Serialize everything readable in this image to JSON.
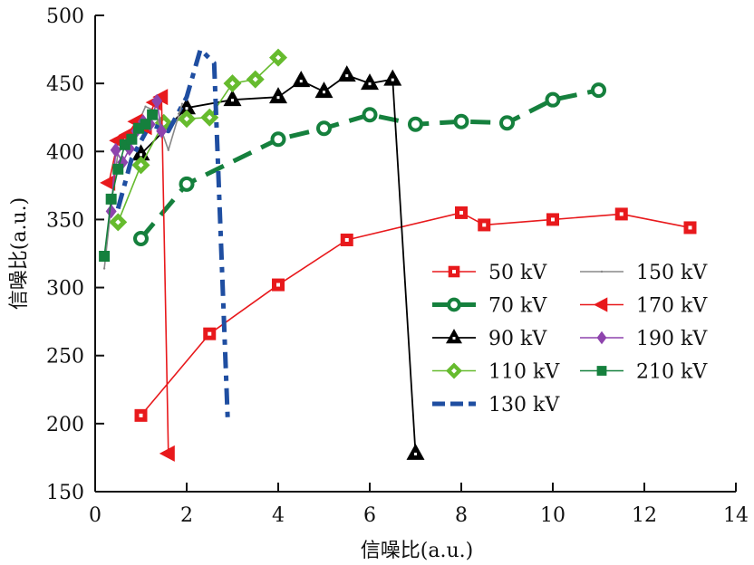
{
  "chart_data": {
    "type": "line",
    "title": "",
    "xlabel": "信噪比(a.u.)",
    "ylabel": "信噪比(a.u.)",
    "xlim": [
      0,
      14
    ],
    "ylim": [
      150,
      500
    ],
    "xticks": [
      0,
      2,
      4,
      6,
      8,
      10,
      12,
      14
    ],
    "yticks": [
      150,
      200,
      250,
      300,
      350,
      400,
      450,
      500
    ],
    "grid": false,
    "legend_position": "center-right",
    "series": [
      {
        "name": "50 kV",
        "color": "#e8191c",
        "marker": "square-open",
        "style": "solid",
        "x": [
          1,
          2.5,
          4,
          5.5,
          8,
          8.5,
          10,
          11.5,
          13
        ],
        "y": [
          206,
          266,
          302,
          335,
          355,
          346,
          350,
          354,
          344
        ]
      },
      {
        "name": "70 kV",
        "color": "#15803d",
        "marker": "circle-open",
        "style": "dashed",
        "x": [
          1,
          2,
          4,
          5,
          6,
          7,
          8,
          9,
          10,
          11
        ],
        "y": [
          336,
          376,
          409,
          417,
          427,
          420,
          422,
          421,
          438,
          445
        ]
      },
      {
        "name": "90 kV",
        "color": "#000000",
        "marker": "triangle-up",
        "style": "solid",
        "x": [
          1,
          2,
          3,
          4,
          4.5,
          5,
          5.5,
          6,
          6.5,
          7
        ],
        "y": [
          398,
          432,
          438,
          440,
          452,
          444,
          456,
          450,
          453,
          178
        ]
      },
      {
        "name": "110 kV",
        "color": "#66bb2e",
        "marker": "diamond-open",
        "style": "solid",
        "x": [
          0.5,
          1,
          1.5,
          2,
          2.5,
          3,
          3.5,
          4
        ],
        "y": [
          348,
          390,
          421,
          424,
          425,
          450,
          453,
          469
        ]
      },
      {
        "name": "130 kV",
        "color": "#1f4ea1",
        "marker": "none",
        "style": "dashdot",
        "x": [
          0.5,
          0.8,
          1.2,
          1.6,
          2.0,
          2.3,
          2.6,
          2.9
        ],
        "y": [
          358,
          395,
          420,
          415,
          440,
          475,
          465,
          200
        ]
      },
      {
        "name": "150 kV",
        "color": "#888888",
        "marker": "dot",
        "style": "solid",
        "x": [
          0.2,
          0.35,
          0.5,
          0.7,
          0.9,
          1.1,
          1.3,
          1.6,
          1.9
        ],
        "y": [
          314,
          360,
          400,
          410,
          418,
          433,
          430,
          401,
          435
        ]
      },
      {
        "name": "170 kV",
        "color": "#e8191c",
        "marker": "triangle-left",
        "style": "solid",
        "x": [
          0.3,
          0.5,
          0.7,
          0.9,
          1.1,
          1.3,
          1.45,
          1.6
        ],
        "y": [
          377,
          408,
          412,
          422,
          418,
          436,
          440,
          178
        ]
      },
      {
        "name": "190 kV",
        "color": "#8e44ad",
        "marker": "diamond",
        "style": "solid",
        "x": [
          0.35,
          0.45,
          0.6,
          0.75,
          0.9,
          1.05,
          1.2,
          1.35,
          1.45
        ],
        "y": [
          356,
          401,
          392,
          402,
          415,
          422,
          420,
          437,
          415
        ]
      },
      {
        "name": "210 kV",
        "color": "#15803d",
        "marker": "square",
        "style": "solid",
        "x": [
          0.2,
          0.35,
          0.5,
          0.65,
          0.8,
          0.95,
          1.1,
          1.25
        ],
        "y": [
          323,
          365,
          387,
          405,
          409,
          417,
          420,
          427
        ]
      }
    ]
  }
}
